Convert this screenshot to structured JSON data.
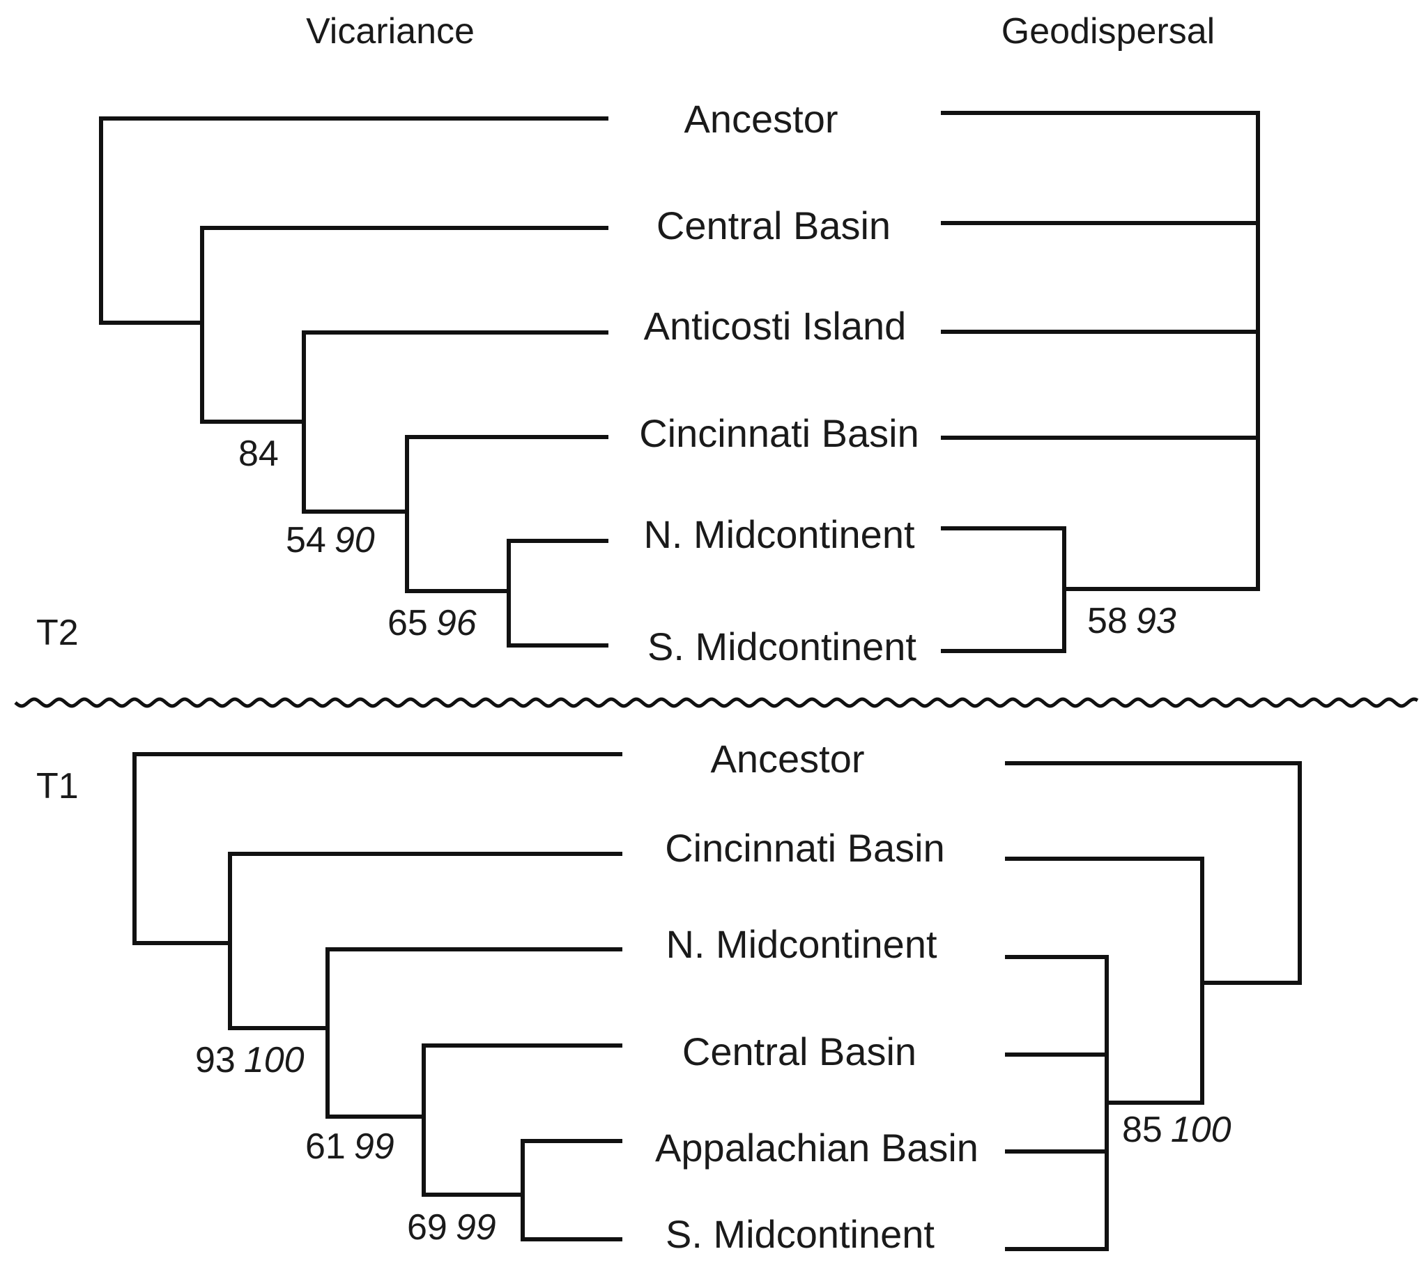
{
  "headers": {
    "left": "Vicariance",
    "right": "Geodispersal"
  },
  "t2": {
    "label": "T2",
    "taxa": [
      "Ancestor",
      "Central Basin",
      "Anticosti Island",
      "Cincinnati Basin",
      "N. Midcontinent",
      "S. Midcontinent"
    ],
    "vicariance_support": [
      {
        "a": "84",
        "b": ""
      },
      {
        "a": "54",
        "b": "90"
      },
      {
        "a": "65",
        "b": "96"
      }
    ],
    "geodispersal_support": [
      {
        "a": "58",
        "b": "93"
      }
    ]
  },
  "t1": {
    "label": "T1",
    "taxa": [
      "Ancestor",
      "Cincinnati Basin",
      "N. Midcontinent",
      "Central Basin",
      "Appalachian Basin",
      "S. Midcontinent"
    ],
    "vicariance_support": [
      {
        "a": "93",
        "b": "100"
      },
      {
        "a": "61",
        "b": "99"
      },
      {
        "a": "69",
        "b": "99"
      }
    ],
    "geodispersal_support": [
      {
        "a": "85",
        "b": "100"
      }
    ]
  }
}
